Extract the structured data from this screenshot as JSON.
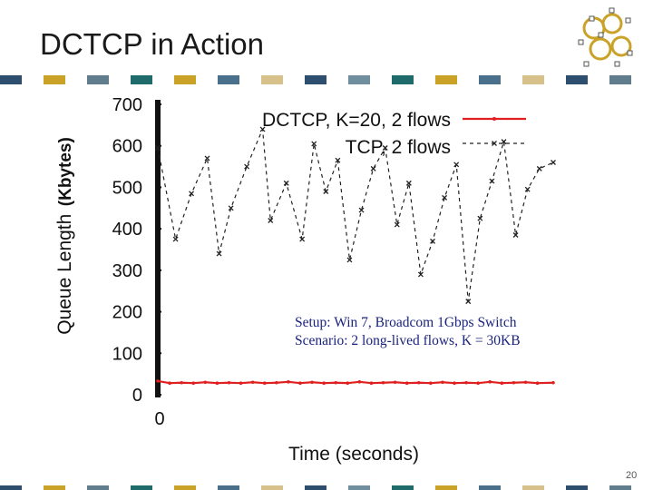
{
  "slide": {
    "title": "DCTCP in Action",
    "page_number": "20",
    "note_line1": "Setup: Win 7, Broadcom 1Gbps Switch",
    "note_line2": "Scenario: 2 long-lived flows, K = 30KB"
  },
  "colors": {
    "deco_palette": [
      "#2e4e6d",
      "#ffffff",
      "#c9a227",
      "#ffffff",
      "#5f7d8c",
      "#ffffff",
      "#1f6b6b",
      "#ffffff",
      "#c9a227",
      "#ffffff",
      "#4a6f8a",
      "#ffffff",
      "#d8c08a",
      "#ffffff",
      "#2e4e6d",
      "#ffffff",
      "#6f8f9f",
      "#ffffff",
      "#1f6b6b",
      "#ffffff",
      "#c9a227",
      "#ffffff",
      "#4a6f8a",
      "#ffffff",
      "#d8c08a",
      "#ffffff",
      "#2e4e6d",
      "#ffffff",
      "#5f7d8c",
      "#ffffff"
    ],
    "dctcp": "#e02020",
    "tcp": "#222222"
  },
  "chart_data": {
    "type": "line",
    "xlabel": "Time (seconds)",
    "ylabel": "Queue Length (Kbytes)",
    "ylabel_main": "Queue Length",
    "ylabel_unit": "(Kbytes)",
    "ylim": [
      0,
      700
    ],
    "yticks": [
      "0",
      "100",
      "200",
      "300",
      "400",
      "500",
      "600",
      "700"
    ],
    "xtick": "0",
    "xlim": [
      0,
      1
    ],
    "legend_position": "top-right",
    "grid": false,
    "series": [
      {
        "name": "DCTCP, K=20, 2 flows",
        "style": "solid",
        "x": [
          0.0,
          0.03,
          0.06,
          0.09,
          0.12,
          0.15,
          0.18,
          0.21,
          0.24,
          0.27,
          0.3,
          0.33,
          0.36,
          0.39,
          0.42,
          0.45,
          0.48,
          0.51,
          0.54,
          0.57,
          0.6,
          0.63,
          0.66,
          0.69,
          0.72,
          0.75,
          0.78,
          0.81,
          0.84,
          0.87,
          0.9,
          0.93,
          0.96,
          1.0
        ],
        "y": [
          33,
          28,
          29,
          28,
          30,
          28,
          29,
          28,
          30,
          28,
          29,
          31,
          28,
          30,
          28,
          29,
          28,
          31,
          28,
          29,
          30,
          28,
          29,
          28,
          30,
          28,
          29,
          28,
          31,
          28,
          29,
          30,
          28,
          29
        ]
      },
      {
        "name": "TCP, 2 flows",
        "style": "dashed",
        "x": [
          0.0,
          0.045,
          0.085,
          0.125,
          0.155,
          0.185,
          0.225,
          0.265,
          0.285,
          0.325,
          0.365,
          0.395,
          0.425,
          0.455,
          0.485,
          0.515,
          0.545,
          0.575,
          0.605,
          0.635,
          0.665,
          0.695,
          0.725,
          0.755,
          0.785,
          0.815,
          0.845,
          0.875,
          0.905,
          0.935,
          0.965,
          1.0
        ],
        "y": [
          595,
          375,
          485,
          570,
          340,
          450,
          550,
          640,
          420,
          510,
          375,
          605,
          490,
          565,
          325,
          445,
          545,
          595,
          410,
          510,
          290,
          370,
          475,
          555,
          225,
          425,
          515,
          610,
          385,
          495,
          545,
          560
        ]
      }
    ]
  }
}
